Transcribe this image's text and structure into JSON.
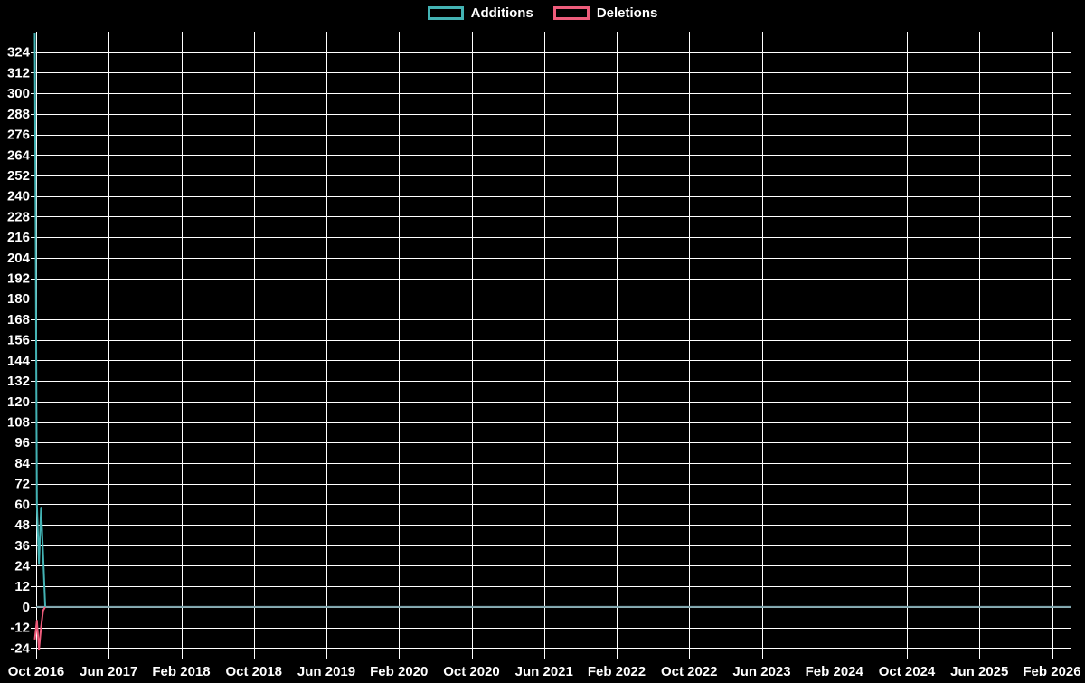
{
  "chart_data": {
    "type": "line",
    "title": "",
    "legend": [
      {
        "label": "Additions",
        "color": "#43b3b4"
      },
      {
        "label": "Deletions",
        "color": "#ee5c7b"
      }
    ],
    "x_ticks": [
      "Oct 2016",
      "Jun 2017",
      "Feb 2018",
      "Oct 2018",
      "Jun 2019",
      "Feb 2020",
      "Oct 2020",
      "Jun 2021",
      "Feb 2022",
      "Oct 2022",
      "Jun 2023",
      "Feb 2024",
      "Oct 2024",
      "Jun 2025",
      "Feb 2026"
    ],
    "y_ticks": [
      -24,
      -12,
      0,
      12,
      24,
      36,
      48,
      60,
      72,
      84,
      96,
      108,
      120,
      132,
      144,
      156,
      168,
      180,
      192,
      204,
      216,
      228,
      240,
      252,
      264,
      276,
      288,
      300,
      312,
      324
    ],
    "y_min": -27,
    "y_max": 336,
    "x_axis_start": "Oct 2016",
    "x_axis_end": "Feb 2026",
    "series": [
      {
        "name": "Additions",
        "color": "#43b3b4",
        "weeks": [
          "2016-10-02",
          "2016-10-09",
          "2016-10-16",
          "2016-10-23",
          "2016-10-30",
          "2016-11-06"
        ],
        "values": [
          335,
          60,
          25,
          58,
          30,
          0
        ]
      },
      {
        "name": "Deletions",
        "color": "#ee5c7b",
        "weeks": [
          "2016-10-02",
          "2016-10-09",
          "2016-10-16",
          "2016-10-23",
          "2016-10-30",
          "2016-11-06"
        ],
        "values": [
          -19,
          -8,
          -25,
          -12,
          -2,
          0
        ]
      }
    ],
    "zero_baseline": {
      "value": 0,
      "extends_to": "Feb 2026",
      "color": "#7ba2aa"
    },
    "grid": "on",
    "grid_color": "#ffffff",
    "background": "#000000",
    "text_color": "#ffffff",
    "legend_position": "top-center"
  }
}
